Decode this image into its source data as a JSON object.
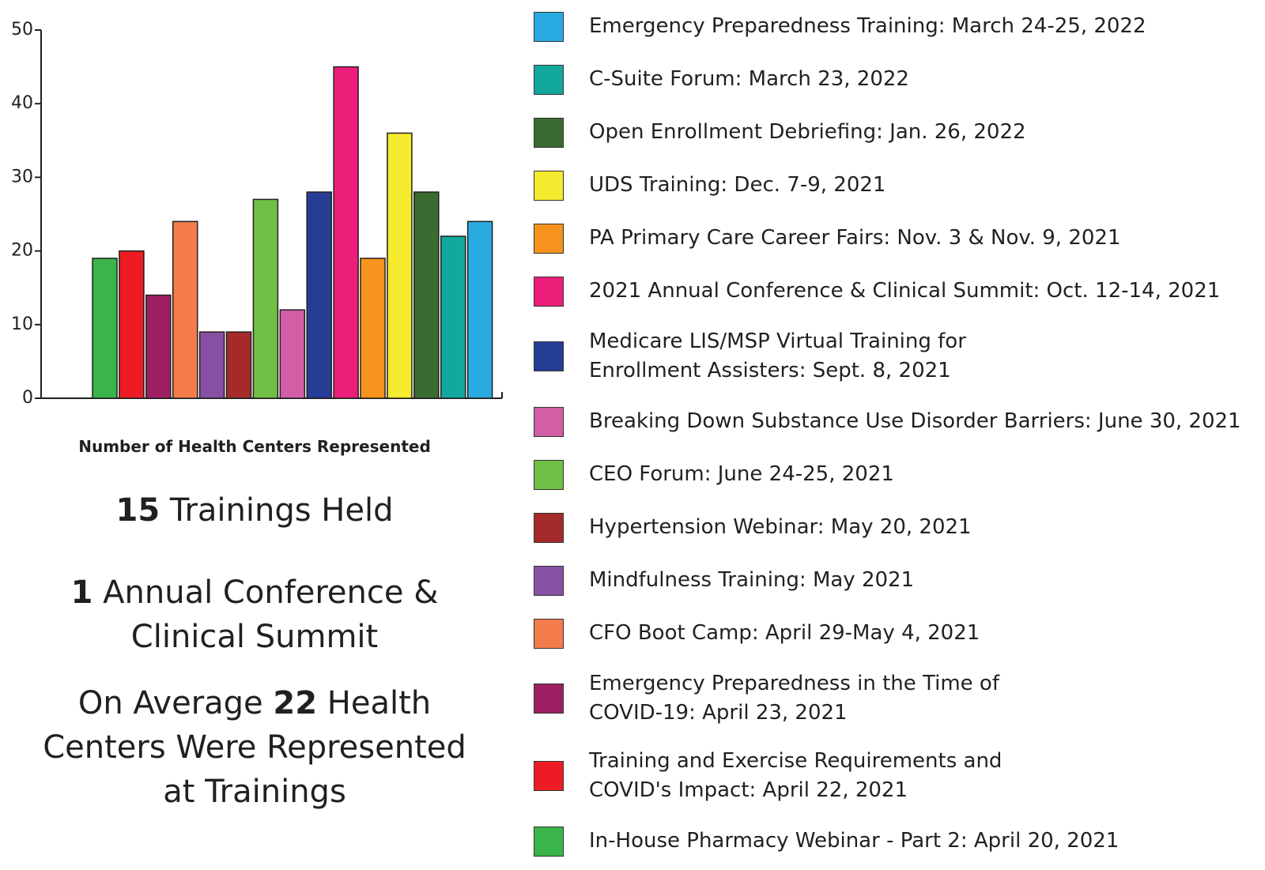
{
  "chart_data": {
    "type": "bar",
    "x_label": "Number of Health Centers Represented",
    "categories": [
      "In-House Pharmacy Webinar - Part 2: April 20, 2021",
      "Training and Exercise Requirements and\nCOVID's Impact: April 22, 2021",
      "Emergency Preparedness in the Time of\nCOVID-19: April 23, 2021",
      "CFO Boot Camp: April 29-May 4, 2021",
      "Mindfulness Training: May 2021",
      "Hypertension Webinar: May 20, 2021",
      "CEO Forum: June 24-25, 2021",
      "Breaking Down Substance Use Disorder Barriers: June 30, 2021",
      "Medicare LIS/MSP Virtual Training for\nEnrollment Assisters: Sept. 8, 2021",
      "2021 Annual Conference & Clinical Summit: Oct. 12-14, 2021",
      "PA Primary Care Career Fairs: Nov. 3 & Nov. 9, 2021",
      "UDS Training: Dec. 7-9, 2021",
      "Open Enrollment Debriefing: Jan. 26, 2022",
      "C-Suite Forum: March 23, 2022",
      "Emergency Preparedness Training: March 24-25, 2022"
    ],
    "values": [
      19,
      20,
      14,
      24,
      9,
      9,
      27,
      12,
      28,
      45,
      19,
      36,
      28,
      22,
      24
    ],
    "colors": [
      "#3ab54a",
      "#ed1c24",
      "#9e1f63",
      "#f47c4c",
      "#8650a3",
      "#a52a2a",
      "#71bf44",
      "#d25ea5",
      "#263d96",
      "#ed1e79",
      "#f7941d",
      "#f4eb2f",
      "#3a6b30",
      "#13a89e",
      "#29abe2"
    ],
    "ylim": [
      0,
      50
    ],
    "yticks": [
      0,
      10,
      20,
      30,
      40,
      50
    ],
    "legend": "right"
  },
  "stats": [
    {
      "bold": "15",
      "text": " Trainings Held"
    },
    {
      "bold": "1",
      "text": " Annual Conference &\nClinical Summit"
    },
    {
      "before": "On Average ",
      "bold": "22",
      "text": " Health\nCenters Were Represented\nat Trainings"
    }
  ]
}
